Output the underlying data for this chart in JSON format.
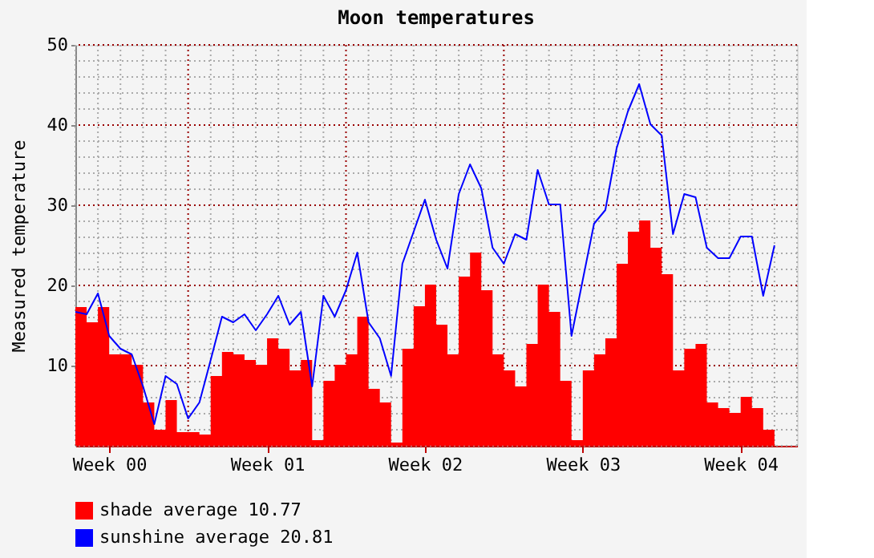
{
  "chart_data": {
    "type": "area",
    "title": "Moon temperatures",
    "ylabel": "Measured temperature",
    "categories": [
      null,
      null,
      null,
      "Week 00",
      null,
      null,
      null,
      null,
      null,
      null,
      null,
      null,
      null,
      null,
      null,
      null,
      null,
      "Week 01",
      null,
      null,
      null,
      null,
      null,
      null,
      null,
      null,
      null,
      null,
      null,
      null,
      null,
      "Week 02",
      null,
      null,
      null,
      null,
      null,
      null,
      null,
      null,
      null,
      null,
      null,
      null,
      null,
      "Week 03",
      null,
      null,
      null,
      null,
      null,
      null,
      null,
      null,
      null,
      null,
      null,
      null,
      null,
      "Week 04",
      null,
      null,
      null,
      null,
      null
    ],
    "ylim": [
      0,
      50
    ],
    "yticks": [
      {
        "value": 0,
        "label": null
      },
      {
        "value": 2,
        "label": null
      },
      {
        "value": 4,
        "label": null
      },
      {
        "value": 6,
        "label": null
      },
      {
        "value": 8,
        "label": null
      },
      10,
      {
        "value": 12,
        "label": null
      },
      {
        "value": 14,
        "label": null
      },
      {
        "value": 16,
        "label": null
      },
      {
        "value": 18,
        "label": null
      },
      20,
      {
        "value": 22,
        "label": null
      },
      {
        "value": 24,
        "label": null
      },
      {
        "value": 26,
        "label": null
      },
      {
        "value": 28,
        "label": null
      },
      30,
      {
        "value": 32,
        "label": null
      },
      {
        "value": 34,
        "label": null
      },
      {
        "value": 36,
        "label": null
      },
      {
        "value": 38,
        "label": null
      },
      40,
      {
        "value": 42,
        "label": null
      },
      {
        "value": 44,
        "label": null
      },
      {
        "value": 46,
        "label": null
      },
      {
        "value": 48,
        "label": null
      },
      50
    ],
    "grid": true,
    "legend": "bottom",
    "series": [
      {
        "name": "shade  average 10.77",
        "color": "#ff0000",
        "values": [
          17.3,
          15.4,
          17.3,
          11.4,
          11.4,
          10.1,
          5.4,
          2.0,
          5.7,
          1.7,
          1.7,
          1.4,
          8.7,
          11.7,
          11.4,
          10.7,
          10.1,
          13.4,
          12.1,
          9.4,
          10.7,
          0.7,
          8.1,
          10.1,
          11.4,
          16.1,
          7.1,
          5.4,
          0.4,
          12.1,
          17.4,
          20.1,
          15.1,
          11.4,
          21.1,
          24.1,
          19.4,
          11.4,
          9.4,
          7.4,
          12.7,
          20.1,
          16.7,
          8.1,
          0.7,
          9.4,
          11.4,
          13.4,
          22.7,
          26.7,
          28.1,
          24.7,
          21.4,
          9.4,
          12.1,
          12.7,
          5.4,
          4.7,
          4.1,
          6.1,
          4.7,
          2.0,
          2.4,
          null,
          null
        ]
      },
      {
        "name": "sunshine  average 20.81",
        "type": "line",
        "color": "#0000ff",
        "values": [
          16.7,
          16.4,
          19.0,
          13.7,
          12.1,
          11.4,
          7.4,
          2.7,
          8.7,
          7.7,
          3.4,
          5.4,
          10.7,
          16.1,
          15.4,
          16.4,
          14.4,
          16.4,
          18.7,
          15.1,
          16.7,
          7.4,
          18.7,
          16.1,
          19.4,
          24.1,
          15.4,
          13.4,
          8.7,
          22.7,
          26.7,
          30.7,
          25.7,
          22.1,
          31.4,
          35.1,
          32.1,
          24.7,
          22.7,
          26.4,
          25.7,
          34.4,
          30.1,
          30.1,
          13.7,
          20.7,
          27.7,
          29.4,
          37.1,
          41.7,
          45.1,
          40.1,
          38.7,
          26.4,
          31.4,
          31.0,
          24.7,
          23.4,
          23.4,
          26.1,
          26.1,
          18.7,
          25.0,
          null,
          null
        ]
      }
    ]
  }
}
